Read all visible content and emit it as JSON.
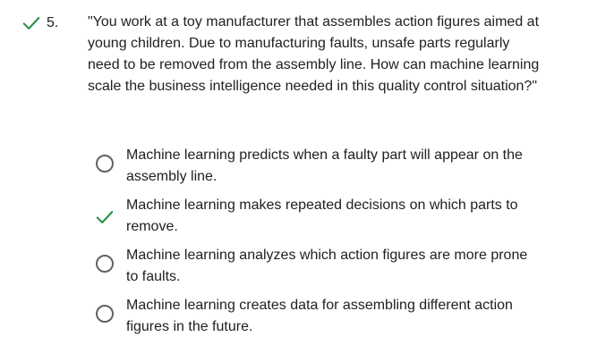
{
  "question": {
    "status_icon": "check-icon",
    "status_color": "#1e8e3e",
    "number": "5.",
    "text": "\"You work at a toy manufacturer that assembles action figures aimed at young children. Due to manufacturing faults, unsafe parts regularly need to be removed from the assembly line. How can machine learning scale the business intelligence needed in this quality control situation?\""
  },
  "options": [
    {
      "label": "Machine learning predicts when a faulty part will appear on the assembly line.",
      "marker": "radio-unselected"
    },
    {
      "label": "Machine learning makes repeated decisions on which parts to remove.",
      "marker": "check-icon"
    },
    {
      "label": "Machine learning analyzes which action figures are more prone to faults.",
      "marker": "radio-unselected"
    },
    {
      "label": "Machine learning creates data for assembling different action figures in the future.",
      "marker": "radio-unselected"
    }
  ]
}
